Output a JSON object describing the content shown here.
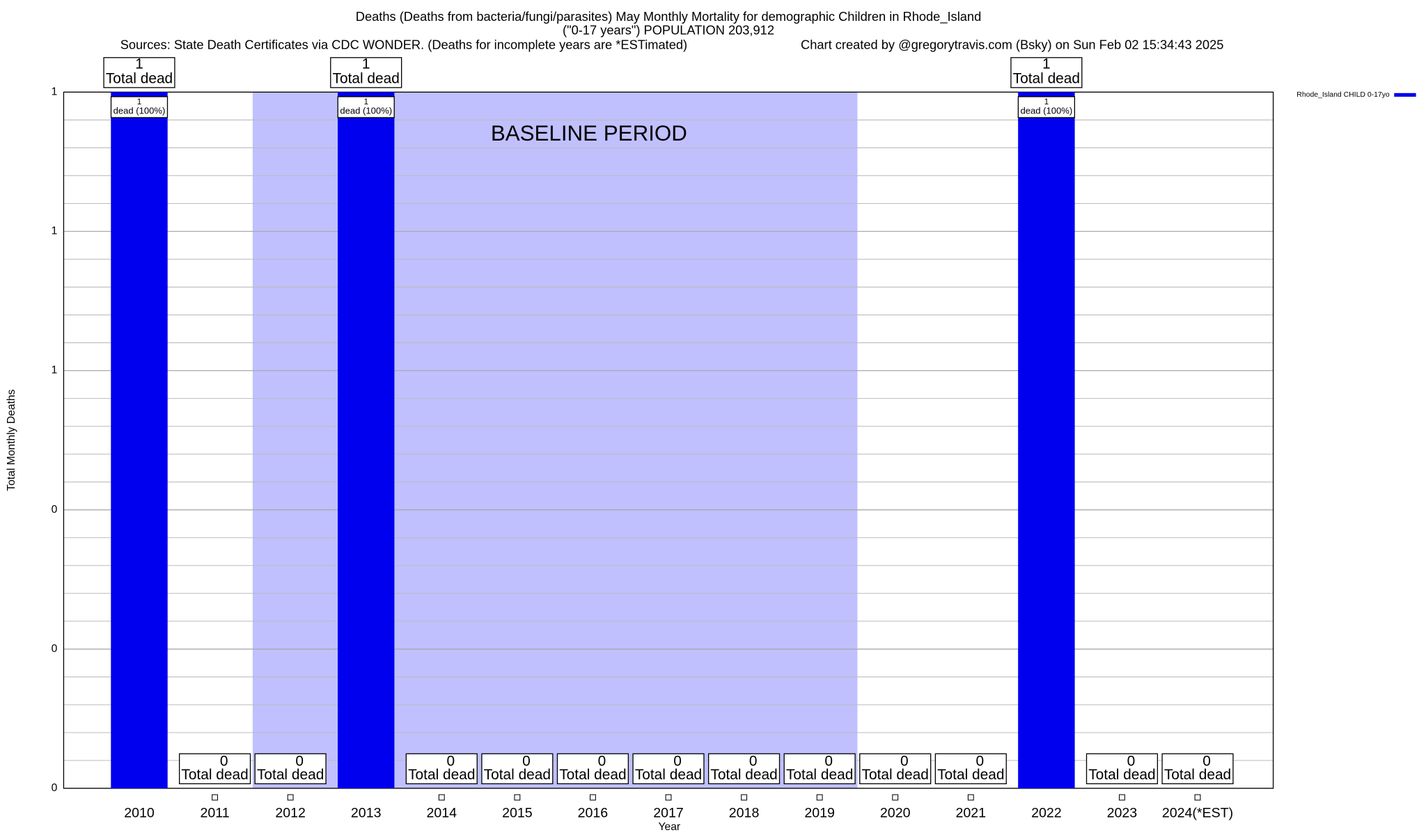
{
  "chart_data": {
    "type": "bar",
    "title": "Deaths (Deaths from bacteria/fungi/parasites) May Monthly Mortality for demographic Children in Rhode_Island",
    "subtitle": "(\"0-17 years\") POPULATION 203,912",
    "sources": "Sources: State Death Certificates via CDC WONDER. (Deaths for incomplete years are *ESTimated)",
    "credit": "Chart created by @gregorytravis.com (Bsky) on Sun Feb 02 15:34:43 2025",
    "x_label": "Year",
    "y_label": "Total Monthly Deaths",
    "categories": [
      "2010",
      "2011",
      "2012",
      "2013",
      "2014",
      "2015",
      "2016",
      "2017",
      "2018",
      "2019",
      "2020",
      "2021",
      "2022",
      "2023",
      "2024(*EST)"
    ],
    "series": [
      {
        "name": "Rhode_Island CHILD 0-17yo",
        "color": "#0000ee",
        "values": [
          1,
          0,
          0,
          1,
          0,
          0,
          0,
          0,
          0,
          0,
          0,
          0,
          1,
          0,
          0
        ],
        "pct_labels": [
          "dead (100%)",
          null,
          null,
          "dead (100%)",
          null,
          null,
          null,
          null,
          null,
          null,
          null,
          null,
          "dead (100%)",
          null,
          null
        ]
      }
    ],
    "total_label": "Total dead",
    "baseline": {
      "label": "BASELINE PERIOD",
      "start": "2012",
      "end": "2019",
      "color": "#c0c0ff"
    },
    "ylim": [
      0,
      1
    ],
    "yticks": [
      0,
      {
        "value": 0.2,
        "label": "0"
      },
      {
        "value": 0.4,
        "label": "0"
      },
      {
        "value": 0.6,
        "label": "1"
      },
      {
        "value": 0.8,
        "label": "1"
      },
      1
    ],
    "grid": true,
    "legend": "top-right"
  }
}
